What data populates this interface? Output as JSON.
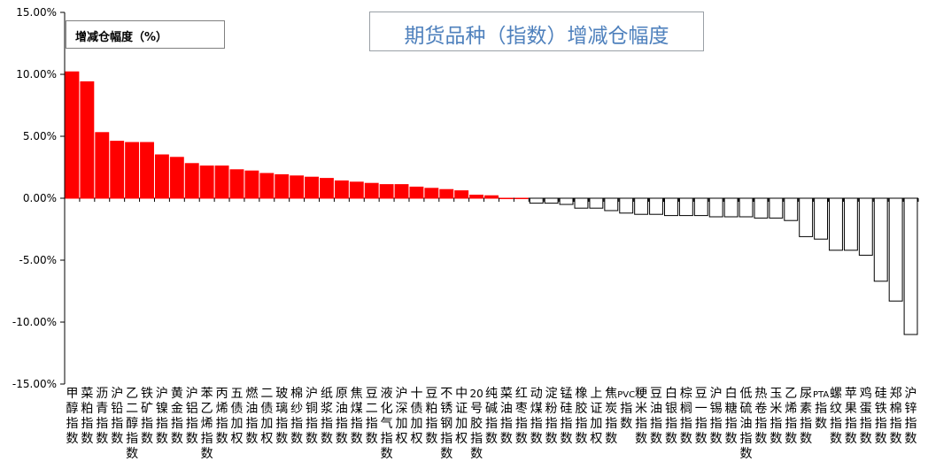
{
  "chart_data": {
    "type": "bar",
    "title": "期货品种（指数）增减仓幅度",
    "legend": {
      "label": "增减仓幅度（%）",
      "placement": "top-left"
    },
    "xlabel": "",
    "ylabel": "",
    "ylim": [
      -15,
      15
    ],
    "yticks": [
      15,
      10,
      5,
      0,
      -5,
      -10,
      -15
    ],
    "ytick_labels": [
      "15.00%",
      "10.00%",
      "5.00%",
      "0.00%",
      "-5.00%",
      "-10.00%",
      "-15.00%"
    ],
    "grid": false,
    "colors": {
      "positive": "#ff0000",
      "negative": "#ffffff",
      "edge": "#000000",
      "title": "#4f81bd"
    },
    "categories": [
      "甲醇指数",
      "菜粕指数",
      "沥青指数",
      "沪铅指数",
      "乙二醇指数",
      "铁矿指数",
      "沪镍指数",
      "黄金指数",
      "沪铝指数",
      "苯乙烯指数",
      "丙烯指数",
      "五债加权",
      "燃油指数",
      "二债加权",
      "玻璃指数",
      "棉纱指数",
      "沪铜指数",
      "纸浆指数",
      "原油指数",
      "焦煤指数",
      "豆二指数",
      "液化气指数",
      "沪深加权",
      "十债加权",
      "豆粕指数",
      "不锈钢指数",
      "中证加权",
      "20号胶指数",
      "纯碱指数",
      "菜油指数",
      "红枣指数",
      "动煤指数",
      "淀粉指数",
      "锰硅指数",
      "橡胶指数",
      "上证加权",
      "焦炭指数",
      "PVC指数",
      "粳米指数",
      "豆油指数",
      "白银指数",
      "棕榈指数",
      "豆一指数",
      "沪锡指数",
      "白糖指数",
      "低硫油指数",
      "热卷指数",
      "玉米指数",
      "乙烯指数",
      "尿素指数",
      "PTA指数",
      "螺纹指数",
      "苹果指数",
      "鸡蛋指数",
      "硅铁指数",
      "郑棉指数",
      "沪锌指数"
    ],
    "category_labels": [
      "甲醇指数",
      "菜粕指数",
      "沥青指数",
      "沪铅指数",
      "乙二醇指数",
      "铁矿指数",
      "沪镍指数",
      "黄金指数",
      "沪铝指数",
      "苯乙烯指数",
      "丙烯指数",
      "五债加权",
      "燃油指数",
      "二债加权",
      "玻璃指数",
      "棉纱指数",
      "沪铜指数",
      "纸浆指数",
      "原油指数",
      "焦煤指数",
      "豆二指数",
      "液化气指数",
      "沪深加权",
      "十债加权",
      "豆粕指数",
      "不锈钢指数",
      "中证加权",
      "20号胶指数",
      "纯碱指数",
      "菜油指数",
      "红枣指数",
      "动煤指数",
      "淀粉指数",
      "锰硅指数",
      "橡胶指数",
      "上证加权",
      "焦炭指数",
      "PVC指数",
      "粳米指数",
      "豆油指数",
      "白银指数",
      "棕榈指数",
      "豆一指数",
      "沪锡指数",
      "白糖指数",
      "低硫油指数",
      "热卷指数",
      "玉米指数",
      "乙烯指数",
      "尿素指数",
      "PTA指数",
      "螺纹指数",
      "苹果指数",
      "鸡蛋指数",
      "硅铁指数",
      "郑棉指数",
      "沪锌指数"
    ],
    "values": [
      10.2,
      9.4,
      5.3,
      4.6,
      4.5,
      4.5,
      3.5,
      3.3,
      2.8,
      2.6,
      2.6,
      2.3,
      2.2,
      2.0,
      1.9,
      1.8,
      1.7,
      1.6,
      1.4,
      1.3,
      1.2,
      1.1,
      1.1,
      0.9,
      0.8,
      0.7,
      0.6,
      0.25,
      0.2,
      0.0,
      0.0,
      -0.4,
      -0.4,
      -0.5,
      -0.8,
      -0.8,
      -1.0,
      -1.2,
      -1.3,
      -1.3,
      -1.4,
      -1.4,
      -1.4,
      -1.5,
      -1.5,
      -1.5,
      -1.6,
      -1.6,
      -1.8,
      -3.1,
      -3.3,
      -4.2,
      -4.2,
      -4.6,
      -6.7,
      -8.3,
      -11.0
    ]
  }
}
